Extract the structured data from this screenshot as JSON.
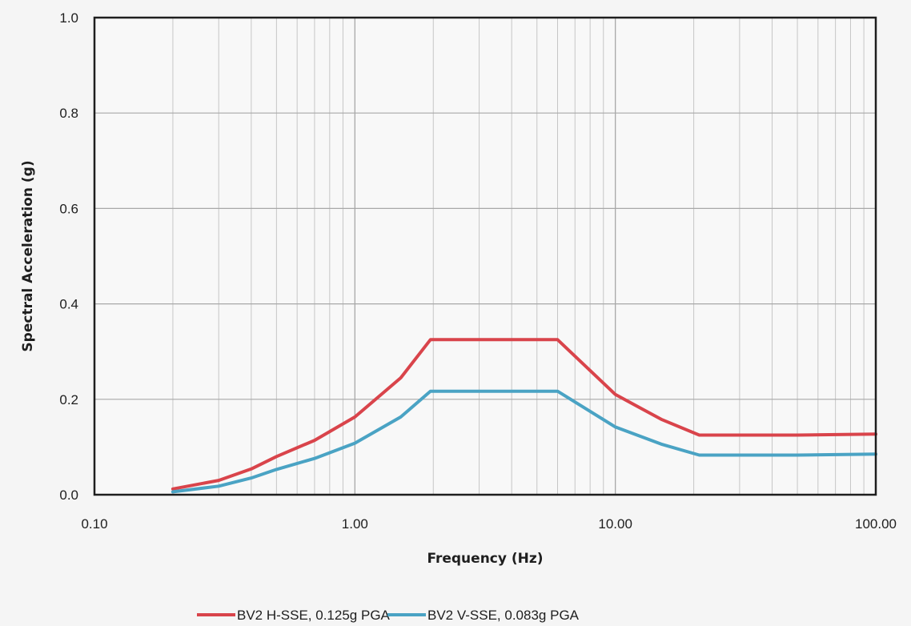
{
  "chart_data": {
    "type": "line",
    "title": "",
    "xlabel": "Frequency (Hz)",
    "ylabel": "Spectral Acceleration (g)",
    "x_scale": "log",
    "xlim": [
      0.1,
      100
    ],
    "ylim": [
      0,
      1.0
    ],
    "x_ticks": [
      "0.10",
      "1.00",
      "10.00",
      "100.00"
    ],
    "y_ticks": [
      "0.0",
      "0.2",
      "0.4",
      "0.6",
      "0.8",
      "1.0"
    ],
    "grid": true,
    "legend_position": "bottom",
    "series": [
      {
        "name": "BV2 H-SSE, 0.125g PGA",
        "color": "#d9444b",
        "x": [
          0.2,
          0.3,
          0.4,
          0.5,
          0.7,
          1.0,
          1.5,
          1.95,
          3.0,
          4.0,
          6.0,
          10.0,
          15.0,
          21.0,
          50.0,
          100.0
        ],
        "y": [
          0.012,
          0.03,
          0.054,
          0.08,
          0.114,
          0.163,
          0.245,
          0.325,
          0.325,
          0.325,
          0.325,
          0.21,
          0.158,
          0.125,
          0.125,
          0.127
        ]
      },
      {
        "name": "BV2 V-SSE, 0.083g PGA",
        "color": "#4aa3c4",
        "x": [
          0.2,
          0.3,
          0.4,
          0.5,
          0.7,
          1.0,
          1.5,
          1.95,
          3.0,
          4.0,
          6.0,
          10.0,
          15.0,
          21.0,
          50.0,
          100.0
        ],
        "y": [
          0.006,
          0.018,
          0.035,
          0.053,
          0.076,
          0.108,
          0.163,
          0.217,
          0.217,
          0.217,
          0.217,
          0.142,
          0.106,
          0.083,
          0.083,
          0.085
        ]
      }
    ]
  }
}
